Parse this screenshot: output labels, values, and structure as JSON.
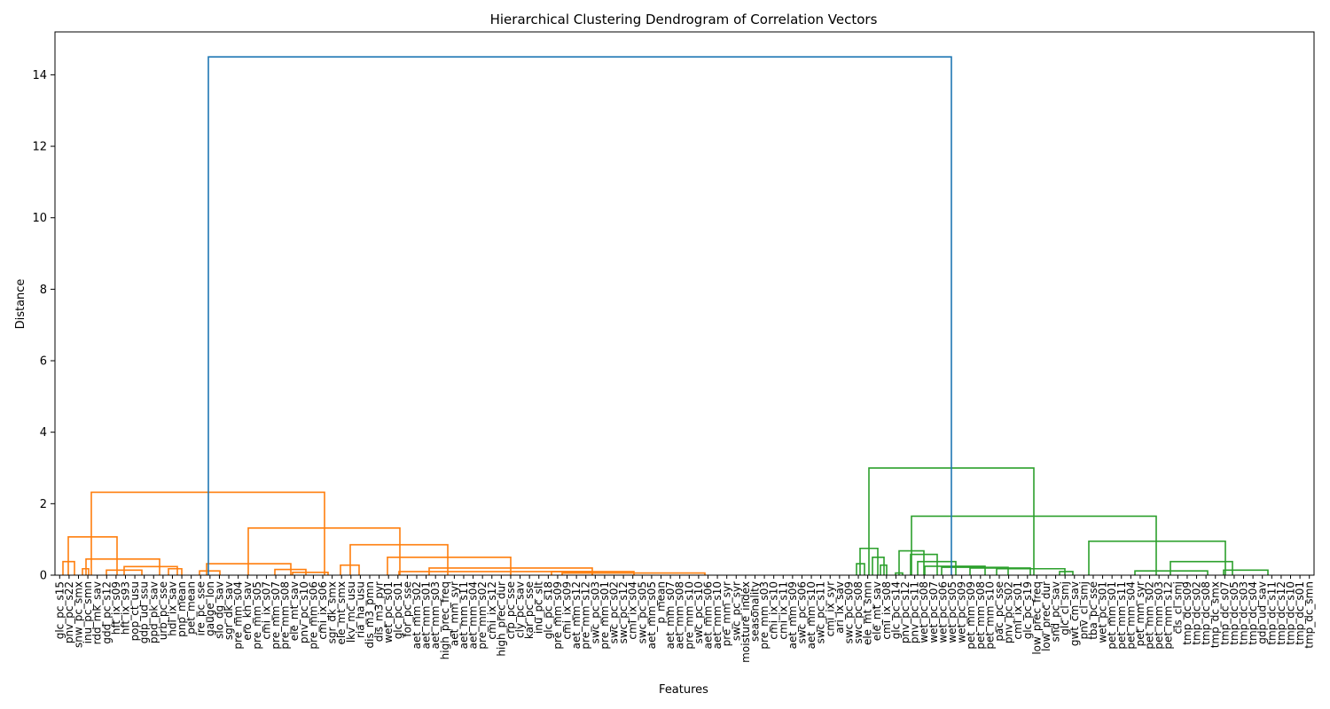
{
  "chart_data": {
    "type": "dendrogram",
    "title": "Hierarchical Clustering Dendrogram of Correlation Vectors",
    "xlabel": "Features",
    "ylabel": "Distance",
    "ylim": [
      0,
      15.2
    ],
    "yticks": [
      0,
      2,
      4,
      6,
      8,
      10,
      12,
      14
    ],
    "grid": false,
    "colors": {
      "cluster_a": "#ff7f0e",
      "cluster_b": "#2ca02c",
      "root": "#1f77b4",
      "axis": "#000000"
    },
    "leaves": [
      "glc_pc_s15",
      "pnv_pc_s22",
      "snw_pc_smx",
      "inu_pc_smn",
      "rdd_mk_sav",
      "gdd_pc_s12",
      "hft_ix_s09",
      "hft_ix_s93",
      "pop_ct_usu",
      "gdp_ud_ssu",
      "ppd_pk_sav",
      "urb_pc_sse",
      "hdi_ix_sav",
      "pnp_mean",
      "pet_mean",
      "ire_pc_sse",
      "gauge_lon",
      "slo_dg_sav",
      "sgr_dk_sav",
      "pre_mm_s04",
      "ero_kh_sav",
      "pre_mm_s05",
      "cmi_ix_s07",
      "pre_mm_s07",
      "pre_mm_s08",
      "ele_mt_sav",
      "pnv_pc_s10",
      "pre_mm_s06",
      "cmi_ix_s06",
      "sgr_dk_smx",
      "ele_mt_smx",
      "lkv_mc_usu",
      "ria_ha_usu",
      "dis_m3_pmn",
      "dis_m3_pyr",
      "wet_pc_s01",
      "glc_pc_s01",
      "for_pc_sse",
      "aet_mm_s02",
      "aet_mm_s01",
      "aet_mm_s03",
      "high_prec_freq",
      "aet_mm_syr",
      "aet_mm_s11",
      "aet_mm_s04",
      "pre_mm_s02",
      "cmi_ix_s12",
      "high_prec_dur",
      "crp_pc_sse",
      "cly_pc_sav",
      "kar_pc_sse",
      "inu_pc_slt",
      "glc_pc_s18",
      "pre_mm_s09",
      "cmi_ix_s09",
      "aet_mm_s12",
      "pre_mm_s12",
      "swc_pc_s03",
      "pre_mm_s01",
      "swc_pc_s02",
      "swc_pc_s12",
      "cmi_ix_s04",
      "swc_pc_s05",
      "aet_mm_s05",
      "p_mean",
      "aet_mm_s07",
      "aet_mm_s08",
      "pre_mm_s10",
      "swc_pc_s10",
      "aet_mm_s06",
      "aet_mm_s10",
      "pre_mm_syr",
      "swc_pc_syr",
      "moisture_index",
      "seasonality",
      "pre_mm_s03",
      "cmi_ix_s10",
      "cmi_ix_s11",
      "aet_mm_s09",
      "swc_pc_s06",
      "aet_mm_s10",
      "swc_pc_s11",
      "cmi_ix_syr",
      "ari_ix_sav",
      "swc_pc_s09",
      "swc_pc_s08",
      "ele_mt_smn",
      "ele_mt_sav",
      "cmi_ix_s08",
      "glc_pc_s14",
      "pnv_pc_s12",
      "pnv_pc_s11",
      "wet_pc_s08",
      "wet_pc_s07",
      "wet_pc_s06",
      "wet_pc_s05",
      "wet_pc_s09",
      "pet_mm_s09",
      "pet_mm_s08",
      "pet_mm_s10",
      "pac_pc_sse",
      "pnv_pc_s02",
      "cmi_ix_s01",
      "glc_pc_s19",
      "low_prec_freq",
      "low_prec_dur",
      "snd_pc_sav",
      "glc_cl_smj",
      "gwt_cm_sav",
      "pnv_cl_smj",
      "tba_pc_sse",
      "wet_pc_s01",
      "pet_mm_s01",
      "pet_mm_s11",
      "pet_mm_s04",
      "pet_mm_syr",
      "pet_mm_s02",
      "pet_mm_s03",
      "pet_mm_s12",
      "cls_cl_smj",
      "tmp_dc_s09",
      "tmp_dc_s02",
      "tmp_dc_s08",
      "tmp_dc_smx",
      "tmp_dc_s07",
      "tmp_dc_s05",
      "tmp_dc_s03",
      "tmp_dc_s04",
      "gdp_ud_sav",
      "tmp_dc_s11",
      "tmp_dc_s12",
      "tmp_dc_s10",
      "tmp_dc_s01",
      "tmp_dc_smn"
    ],
    "links": [
      {
        "x1": 71,
        "x2": 84,
        "h": 0.38,
        "color": "cluster_a"
      },
      {
        "x1": 93,
        "x2": 100,
        "h": 0.18,
        "color": "cluster_a"
      },
      {
        "x1": 97,
        "x2": 180,
        "h": 0.45,
        "color": "cluster_a"
      },
      {
        "x1": 77,
        "x2": 132,
        "h": 1.07,
        "color": "cluster_a"
      },
      {
        "x1": 120,
        "x2": 160,
        "h": 0.14,
        "color": "cluster_a"
      },
      {
        "x1": 140,
        "x2": 200,
        "h": 0.24,
        "color": "cluster_a"
      },
      {
        "x1": 190,
        "x2": 205,
        "h": 0.18,
        "color": "cluster_a"
      },
      {
        "x1": 225,
        "x2": 248,
        "h": 0.12,
        "color": "cluster_a"
      },
      {
        "x1": 233,
        "x2": 328,
        "h": 0.32,
        "color": "cluster_a"
      },
      {
        "x1": 310,
        "x2": 345,
        "h": 0.16,
        "color": "cluster_a"
      },
      {
        "x1": 330,
        "x2": 370,
        "h": 0.08,
        "color": "cluster_a"
      },
      {
        "x1": 384,
        "x2": 405,
        "h": 0.28,
        "color": "cluster_a"
      },
      {
        "x1": 395,
        "x2": 505,
        "h": 0.85,
        "color": "cluster_a"
      },
      {
        "x1": 437,
        "x2": 576,
        "h": 0.5,
        "color": "cluster_a"
      },
      {
        "x1": 450,
        "x2": 668,
        "h": 0.1,
        "color": "cluster_a"
      },
      {
        "x1": 484,
        "x2": 668,
        "h": 0.2,
        "color": "cluster_a"
      },
      {
        "x1": 622,
        "x2": 715,
        "h": 0.1,
        "color": "cluster_a"
      },
      {
        "x1": 634,
        "x2": 795,
        "h": 0.06,
        "color": "cluster_a"
      },
      {
        "x1": 280,
        "x2": 451,
        "h": 1.32,
        "color": "cluster_a"
      },
      {
        "x1": 103,
        "x2": 366,
        "h": 2.32,
        "color": "cluster_a"
      },
      {
        "x1": 966,
        "x2": 975,
        "h": 0.32,
        "color": "cluster_b"
      },
      {
        "x1": 970,
        "x2": 990,
        "h": 0.75,
        "color": "cluster_b"
      },
      {
        "x1": 984,
        "x2": 997,
        "h": 0.5,
        "color": "cluster_b"
      },
      {
        "x1": 993,
        "x2": 1000,
        "h": 0.28,
        "color": "cluster_b"
      },
      {
        "x1": 1010,
        "x2": 1018,
        "h": 0.06,
        "color": "cluster_b"
      },
      {
        "x1": 1014,
        "x2": 1042,
        "h": 0.68,
        "color": "cluster_b"
      },
      {
        "x1": 1027,
        "x2": 1057,
        "h": 0.58,
        "color": "cluster_b"
      },
      {
        "x1": 1035,
        "x2": 1078,
        "h": 0.38,
        "color": "cluster_b"
      },
      {
        "x1": 1043,
        "x2": 1111,
        "h": 0.25,
        "color": "cluster_b"
      },
      {
        "x1": 1062,
        "x2": 1137,
        "h": 0.22,
        "color": "cluster_b"
      },
      {
        "x1": 1094,
        "x2": 1162,
        "h": 0.2,
        "color": "cluster_b"
      },
      {
        "x1": 1124,
        "x2": 1201,
        "h": 0.18,
        "color": "cluster_b"
      },
      {
        "x1": 1195,
        "x2": 1210,
        "h": 0.1,
        "color": "cluster_b"
      },
      {
        "x1": 1228,
        "x2": 1382,
        "h": 0.95,
        "color": "cluster_b"
      },
      {
        "x1": 1280,
        "x2": 1362,
        "h": 0.12,
        "color": "cluster_b"
      },
      {
        "x1": 1320,
        "x2": 1390,
        "h": 0.38,
        "color": "cluster_b"
      },
      {
        "x1": 1380,
        "x2": 1430,
        "h": 0.14,
        "color": "cluster_b"
      },
      {
        "x1": 1028,
        "x2": 1304,
        "h": 1.65,
        "color": "cluster_b"
      },
      {
        "x1": 980,
        "x2": 1166,
        "h": 3.0,
        "color": "cluster_b"
      },
      {
        "x1": 235,
        "x2": 1073,
        "h": 14.5,
        "color": "root"
      }
    ]
  }
}
